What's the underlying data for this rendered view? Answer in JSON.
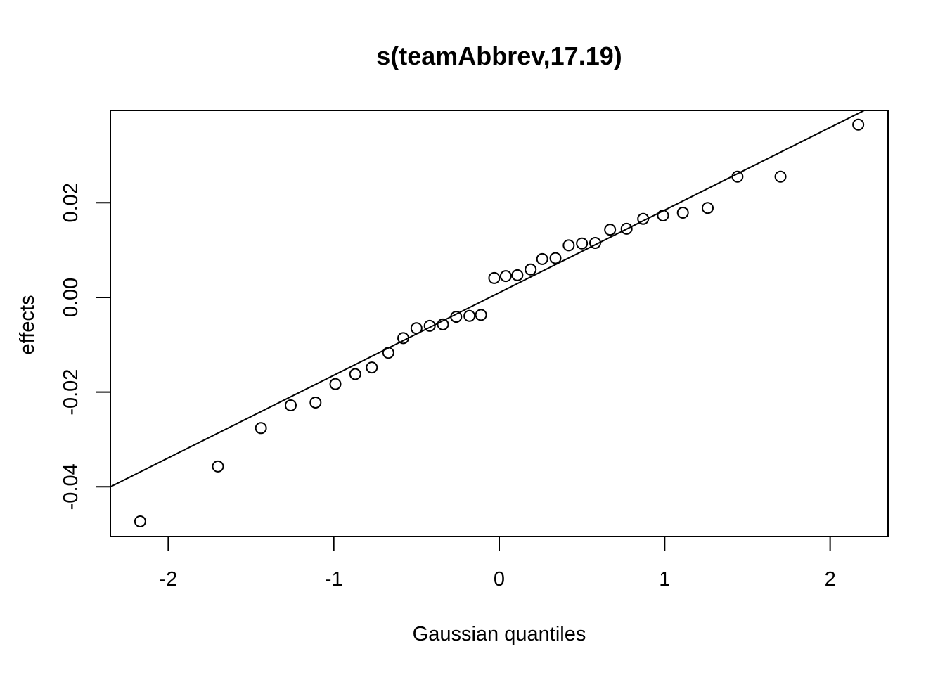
{
  "chart_data": {
    "type": "scatter",
    "title": "s(teamAbbrev,17.19)",
    "xlabel": "Gaussian quantiles",
    "ylabel": "effects",
    "xlim": [
      -2.35,
      2.35
    ],
    "ylim": [
      -0.0505,
      0.0395
    ],
    "x_ticks": [
      -2,
      -1,
      0,
      1,
      2
    ],
    "x_tick_labels": [
      "-2",
      "-1",
      "0",
      "1",
      "2"
    ],
    "y_ticks": [
      -0.04,
      -0.02,
      0.0,
      0.02
    ],
    "y_tick_labels": [
      "-0.04",
      "-0.02",
      "0.00",
      "0.02"
    ],
    "grid": false,
    "marker": "open-circle",
    "points": [
      {
        "x": -2.17,
        "y": -0.0473
      },
      {
        "x": -1.7,
        "y": -0.0357
      },
      {
        "x": -1.44,
        "y": -0.0276
      },
      {
        "x": -1.26,
        "y": -0.0228
      },
      {
        "x": -1.11,
        "y": -0.0222
      },
      {
        "x": -0.99,
        "y": -0.0183
      },
      {
        "x": -0.87,
        "y": -0.0162
      },
      {
        "x": -0.77,
        "y": -0.0148
      },
      {
        "x": -0.67,
        "y": -0.0117
      },
      {
        "x": -0.58,
        "y": -0.0086
      },
      {
        "x": -0.5,
        "y": -0.0065
      },
      {
        "x": -0.42,
        "y": -0.006
      },
      {
        "x": -0.34,
        "y": -0.0057
      },
      {
        "x": -0.26,
        "y": -0.0041
      },
      {
        "x": -0.18,
        "y": -0.0039
      },
      {
        "x": -0.11,
        "y": -0.0037
      },
      {
        "x": -0.03,
        "y": 0.0041
      },
      {
        "x": 0.04,
        "y": 0.0045
      },
      {
        "x": 0.11,
        "y": 0.0047
      },
      {
        "x": 0.19,
        "y": 0.0059
      },
      {
        "x": 0.26,
        "y": 0.0081
      },
      {
        "x": 0.34,
        "y": 0.0083
      },
      {
        "x": 0.42,
        "y": 0.011
      },
      {
        "x": 0.5,
        "y": 0.0114
      },
      {
        "x": 0.58,
        "y": 0.0115
      },
      {
        "x": 0.67,
        "y": 0.0143
      },
      {
        "x": 0.77,
        "y": 0.0145
      },
      {
        "x": 0.87,
        "y": 0.0166
      },
      {
        "x": 0.99,
        "y": 0.0173
      },
      {
        "x": 1.11,
        "y": 0.0179
      },
      {
        "x": 1.26,
        "y": 0.0189
      },
      {
        "x": 1.44,
        "y": 0.0255
      },
      {
        "x": 1.7,
        "y": 0.0255
      },
      {
        "x": 2.17,
        "y": 0.0365
      }
    ],
    "reference_line": {
      "intercept": 0.001,
      "slope": 0.01745
    }
  }
}
